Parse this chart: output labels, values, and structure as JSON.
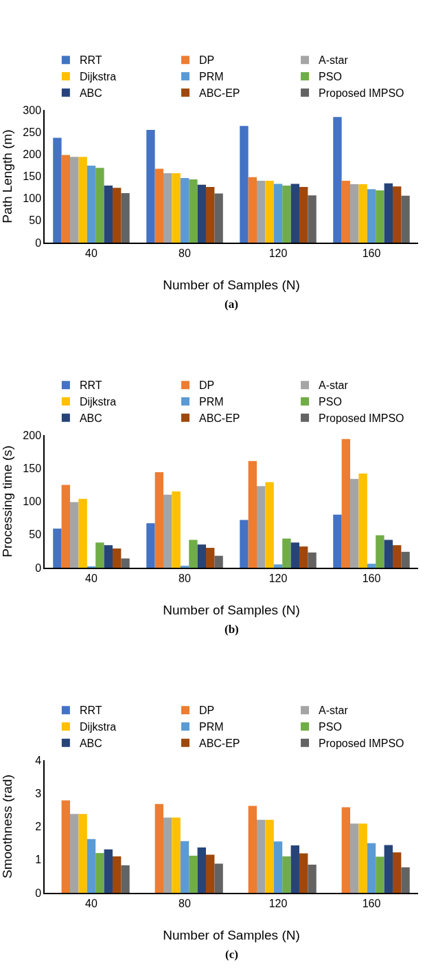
{
  "chart_data": [
    {
      "type": "bar",
      "categories": [
        "40",
        "80",
        "120",
        "160"
      ],
      "xlabel": "Number of Samples (N)",
      "ylabel": "Path Length (m)",
      "ylim": [
        0,
        300
      ],
      "yticks": [
        0,
        50,
        100,
        150,
        200,
        250,
        300
      ],
      "legend": "top",
      "annotations": [
        "(a)"
      ],
      "series": [
        {
          "name": "RRT",
          "color": "#4472c4",
          "values": [
            237,
            255,
            264,
            284
          ]
        },
        {
          "name": "DP",
          "color": "#ed7d31",
          "values": [
            198,
            167,
            148,
            140
          ]
        },
        {
          "name": "A-star",
          "color": "#a5a5a5",
          "values": [
            194,
            157,
            140,
            132
          ]
        },
        {
          "name": "Dijkstra",
          "color": "#ffc000",
          "values": [
            194,
            157,
            140,
            132
          ]
        },
        {
          "name": "PRM",
          "color": "#5b9bd5",
          "values": [
            174,
            146,
            133,
            121
          ]
        },
        {
          "name": "PSO",
          "color": "#70ad47",
          "values": [
            169,
            143,
            129,
            118
          ]
        },
        {
          "name": "ABC",
          "color": "#264478",
          "values": [
            129,
            131,
            133,
            134
          ]
        },
        {
          "name": "ABC-EP",
          "color": "#9e480e",
          "values": [
            124,
            126,
            126,
            127
          ]
        },
        {
          "name": "Proposed IMPSO",
          "color": "#636363",
          "values": [
            112,
            111,
            107,
            106
          ]
        }
      ]
    },
    {
      "type": "bar",
      "categories": [
        "40",
        "80",
        "120",
        "160"
      ],
      "xlabel": "Number of Samples (N)",
      "ylabel": "Processing time (s)",
      "ylim": [
        0,
        200
      ],
      "yticks": [
        0,
        50,
        100,
        150,
        200
      ],
      "legend": "top",
      "annotations": [
        "(b)"
      ],
      "series": [
        {
          "name": "RRT",
          "color": "#4472c4",
          "values": [
            59,
            67,
            72,
            80
          ]
        },
        {
          "name": "DP",
          "color": "#ed7d31",
          "values": [
            125,
            144,
            161,
            194
          ]
        },
        {
          "name": "A-star",
          "color": "#a5a5a5",
          "values": [
            99,
            110,
            123,
            134
          ]
        },
        {
          "name": "Dijkstra",
          "color": "#ffc000",
          "values": [
            104,
            115,
            129,
            142
          ]
        },
        {
          "name": "PRM",
          "color": "#5b9bd5",
          "values": [
            2,
            3,
            5,
            6
          ]
        },
        {
          "name": "PSO",
          "color": "#70ad47",
          "values": [
            38,
            42,
            44,
            49
          ]
        },
        {
          "name": "ABC",
          "color": "#264478",
          "values": [
            34,
            35,
            38,
            42
          ]
        },
        {
          "name": "ABC-EP",
          "color": "#9e480e",
          "values": [
            29,
            30,
            32,
            34
          ]
        },
        {
          "name": "Proposed IMPSO",
          "color": "#636363",
          "values": [
            14,
            18,
            23,
            24
          ]
        }
      ]
    },
    {
      "type": "bar",
      "categories": [
        "40",
        "80",
        "120",
        "160"
      ],
      "xlabel": "Number of Samples (N)",
      "ylabel": "Smoothness (rad)",
      "ylim": [
        0,
        4
      ],
      "yticks": [
        0,
        1,
        2,
        3,
        4
      ],
      "legend": "top",
      "annotations": [
        "(c)"
      ],
      "series": [
        {
          "name": "RRT",
          "color": "#4472c4",
          "values": [
            null,
            null,
            null,
            null
          ]
        },
        {
          "name": "DP",
          "color": "#ed7d31",
          "values": [
            2.79,
            2.68,
            2.62,
            2.58
          ]
        },
        {
          "name": "A-star",
          "color": "#a5a5a5",
          "values": [
            2.38,
            2.27,
            2.2,
            2.09
          ]
        },
        {
          "name": "Dijkstra",
          "color": "#ffc000",
          "values": [
            2.38,
            2.27,
            2.2,
            2.09
          ]
        },
        {
          "name": "PRM",
          "color": "#5b9bd5",
          "values": [
            1.62,
            1.56,
            1.55,
            1.5
          ]
        },
        {
          "name": "PSO",
          "color": "#70ad47",
          "values": [
            1.2,
            1.12,
            1.1,
            1.09
          ]
        },
        {
          "name": "ABC",
          "color": "#264478",
          "values": [
            1.31,
            1.37,
            1.43,
            1.44
          ]
        },
        {
          "name": "ABC-EP",
          "color": "#9e480e",
          "values": [
            1.1,
            1.15,
            1.19,
            1.22
          ]
        },
        {
          "name": "Proposed IMPSO",
          "color": "#636363",
          "values": [
            0.83,
            0.88,
            0.85,
            0.77
          ]
        }
      ]
    }
  ]
}
